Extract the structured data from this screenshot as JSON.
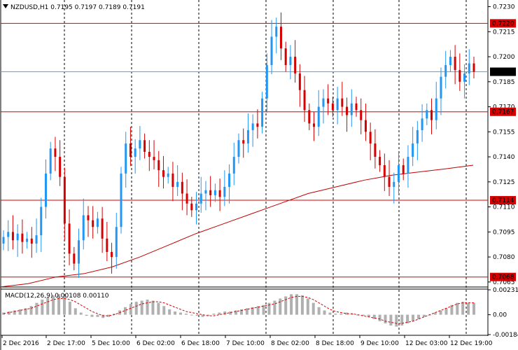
{
  "header": {
    "symbol_label": "NZDUSD,H1  0.7195 0.7197 0.7189 0.7191",
    "indicator_label": "MACD(12,26,9) 0.00108 0.00110"
  },
  "colors": {
    "bull": "#2196F3",
    "bear": "#D50000",
    "ma": "#C00000",
    "level": "#D50000",
    "grid": "#000000",
    "macd_hist": "#B0B0B0",
    "signal": "#D50000",
    "tag_text": "#ffffff"
  },
  "price_axis": {
    "ticks": [
      "0.7230",
      "0.7215",
      "0.7200",
      "0.7185",
      "0.7170",
      "0.7155",
      "0.7140",
      "0.7125",
      "0.7110",
      "0.7095",
      "0.7080",
      "0.7065"
    ],
    "current": "0.7191",
    "levels": [
      "0.7220",
      "0.7167",
      "0.7114",
      "0.7068"
    ]
  },
  "macd_axis": {
    "ticks": [
      "0.00231",
      "0.00",
      "-0.00184"
    ]
  },
  "time_axis": {
    "labels": [
      "2 Dec 2016",
      "2 Dec 17:00",
      "5 Dec 10:00",
      "6 Dec 02:00",
      "6 Dec 18:00",
      "7 Dec 10:00",
      "8 Dec 02:00",
      "8 Dec 18:00",
      "9 Dec 10:00",
      "12 Dec 03:00",
      "12 Dec 19:00"
    ]
  },
  "chart_data": {
    "type": "candlestick",
    "symbol": "NZDUSD",
    "timeframe": "H1",
    "price_range": [
      0.7062,
      0.7234
    ],
    "ohlc_last": {
      "open": 0.7195,
      "high": 0.7197,
      "low": 0.7189,
      "close": 0.7191
    },
    "horizontal_levels": [
      0.722,
      0.7167,
      0.7114,
      0.7068
    ],
    "current_price": 0.7191,
    "moving_average": {
      "points": [
        [
          0,
          0.7062
        ],
        [
          40,
          0.7064
        ],
        [
          80,
          0.7068
        ],
        [
          120,
          0.707
        ],
        [
          160,
          0.7074
        ],
        [
          200,
          0.708
        ],
        [
          240,
          0.7087
        ],
        [
          280,
          0.7094
        ],
        [
          320,
          0.71
        ],
        [
          360,
          0.7106
        ],
        [
          400,
          0.7112
        ],
        [
          440,
          0.7118
        ],
        [
          480,
          0.7122
        ],
        [
          520,
          0.7126
        ],
        [
          560,
          0.7129
        ],
        [
          600,
          0.7131
        ],
        [
          640,
          0.7133
        ],
        [
          676,
          0.7135
        ]
      ]
    },
    "macd": {
      "params": "12,26,9",
      "value": 0.00108,
      "signal_value": 0.0011,
      "range": [
        -0.00184,
        0.00231
      ],
      "hist": [
        0.0002,
        0.0003,
        0.0004,
        0.0005,
        0.0006,
        0.0008,
        0.0011,
        0.0014,
        0.0016,
        0.0018,
        0.0019,
        0.0017,
        0.0012,
        0.0006,
        0.0002,
        -0.0001,
        -0.0002,
        -0.0002,
        -0.0003,
        -0.0002,
        0.0001,
        0.0004,
        0.0007,
        0.001,
        0.0012,
        0.0013,
        0.0014,
        0.0013,
        0.0011,
        0.0008,
        0.0005,
        0.0003,
        0.0002,
        0.0001,
        0.0,
        -0.0001,
        -0.0002,
        -0.0001,
        0.0001,
        0.0002,
        0.0003,
        0.0003,
        0.0004,
        0.0005,
        0.0006,
        0.0007,
        0.0008,
        0.0009,
        0.0011,
        0.0013,
        0.0015,
        0.0017,
        0.0019,
        0.0019,
        0.0018,
        0.0015,
        0.0011,
        0.0007,
        0.0004,
        0.0002,
        0.0001,
        0.0001,
        0.0002,
        0.0001,
        0.0,
        -0.0001,
        -0.0002,
        -0.0004,
        -0.0006,
        -0.0008,
        -0.001,
        -0.0011,
        -0.001,
        -0.0008,
        -0.0006,
        -0.0004,
        -0.0002,
        0.0,
        0.0002,
        0.0004,
        0.0006,
        0.0009,
        0.0011,
        0.0012,
        0.0011,
        0.0011
      ],
      "signal": [
        0.0001,
        0.0002,
        0.0003,
        0.0004,
        0.0005,
        0.0006,
        0.0008,
        0.001,
        0.0012,
        0.0014,
        0.0015,
        0.0015,
        0.0014,
        0.0012,
        0.0009,
        0.0006,
        0.0003,
        0.0001,
        -0.0001,
        -0.0001,
        0.0,
        0.0002,
        0.0004,
        0.0006,
        0.0008,
        0.001,
        0.0011,
        0.0012,
        0.0012,
        0.0011,
        0.0009,
        0.0007,
        0.0005,
        0.0003,
        0.0002,
        0.0001,
        0.0,
        -0.0001,
        -0.0001,
        0.0,
        0.0001,
        0.0002,
        0.0003,
        0.0004,
        0.0005,
        0.0006,
        0.0007,
        0.0008,
        0.0009,
        0.001,
        0.0012,
        0.0014,
        0.0016,
        0.0017,
        0.0017,
        0.0016,
        0.0014,
        0.0011,
        0.0008,
        0.0005,
        0.0003,
        0.0002,
        0.0001,
        0.0001,
        0.0,
        -0.0001,
        -0.0002,
        -0.0003,
        -0.0004,
        -0.0006,
        -0.0007,
        -0.0008,
        -0.0008,
        -0.0007,
        -0.0006,
        -0.0004,
        -0.0002,
        0.0,
        0.0002,
        0.0004,
        0.0006,
        0.0008,
        0.001,
        0.0011,
        0.0011,
        0.0011
      ]
    }
  }
}
